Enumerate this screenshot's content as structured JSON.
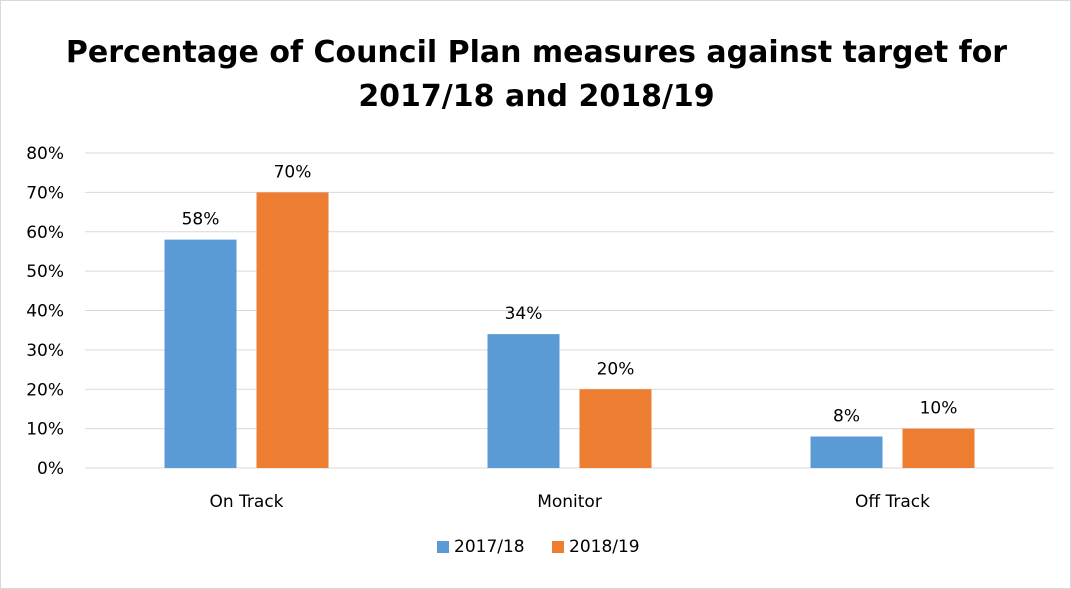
{
  "chart_data": {
    "type": "bar",
    "title_line1": "Percentage of Council Plan measures against target for",
    "title_line2": "2017/18 and 2018/19",
    "categories": [
      "On Track",
      "Monitor",
      "Off Track"
    ],
    "series": [
      {
        "name": "2017/18",
        "values": [
          58,
          34,
          8
        ],
        "labels": [
          "58%",
          "34%",
          "8%"
        ],
        "color": "#5b9bd5"
      },
      {
        "name": "2018/19",
        "values": [
          70,
          20,
          10
        ],
        "labels": [
          "70%",
          "20%",
          "10%"
        ],
        "color": "#ed7d31"
      }
    ],
    "ylim": [
      0,
      80
    ],
    "yticks": [
      "0%",
      "10%",
      "20%",
      "30%",
      "40%",
      "50%",
      "60%",
      "70%",
      "80%"
    ],
    "ytick_values": [
      0,
      10,
      20,
      30,
      40,
      50,
      60,
      70,
      80
    ],
    "grid": true,
    "gridline_color": "#d9d9d9",
    "legend_placement": "bottom-center"
  }
}
